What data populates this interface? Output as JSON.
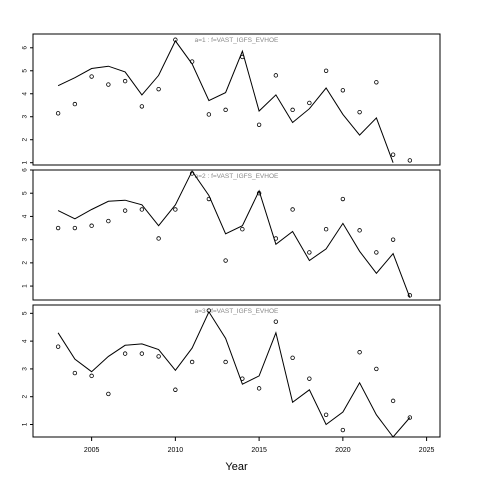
{
  "chart_data": [
    {
      "type": "line",
      "panel_label": "a=1  :  f=VAST_IGFS_EVHOE",
      "x": [
        2003,
        2004,
        2005,
        2006,
        2007,
        2008,
        2009,
        2010,
        2011,
        2012,
        2013,
        2014,
        2015,
        2016,
        2017,
        2018,
        2019,
        2020,
        2021,
        2022,
        2023,
        2024
      ],
      "ylim": [
        0.9,
        6.6
      ],
      "yticks": [
        1,
        2,
        3,
        4,
        5,
        6
      ],
      "series": [
        {
          "kind": "line",
          "values": [
            4.35,
            4.7,
            5.1,
            5.2,
            4.95,
            3.95,
            4.8,
            6.3,
            5.3,
            3.7,
            4.05,
            5.85,
            3.25,
            3.95,
            2.75,
            3.35,
            4.25,
            3.1,
            2.2,
            2.95,
            1.0,
            null
          ]
        },
        {
          "kind": "points",
          "values": [
            3.15,
            3.55,
            4.75,
            4.4,
            4.55,
            3.45,
            4.2,
            6.35,
            5.4,
            3.1,
            3.3,
            5.6,
            2.65,
            4.8,
            3.3,
            3.6,
            5.0,
            4.15,
            3.2,
            4.5,
            1.35,
            1.1
          ]
        }
      ]
    },
    {
      "type": "line",
      "panel_label": "a=2  :  f=VAST_IGFS_EVHOE",
      "x": [
        2003,
        2004,
        2005,
        2006,
        2007,
        2008,
        2009,
        2010,
        2011,
        2012,
        2013,
        2014,
        2015,
        2016,
        2017,
        2018,
        2019,
        2020,
        2021,
        2022,
        2023,
        2024
      ],
      "ylim": [
        0.4,
        6.0
      ],
      "yticks": [
        1,
        2,
        3,
        4,
        5,
        6
      ],
      "series": [
        {
          "kind": "line",
          "values": [
            4.25,
            3.9,
            4.3,
            4.65,
            4.7,
            4.5,
            3.6,
            4.5,
            5.95,
            4.9,
            3.25,
            3.6,
            5.1,
            2.8,
            3.35,
            2.1,
            2.6,
            3.7,
            2.5,
            1.55,
            2.4,
            0.5
          ]
        },
        {
          "kind": "points",
          "values": [
            3.5,
            3.5,
            3.6,
            3.8,
            4.25,
            4.3,
            3.05,
            4.3,
            5.85,
            4.75,
            2.1,
            3.45,
            5.0,
            3.05,
            4.3,
            2.45,
            3.45,
            4.75,
            3.4,
            2.45,
            3.0,
            0.6
          ]
        }
      ]
    },
    {
      "type": "line",
      "panel_label": "a=3  :  f=VAST_IGFS_EVHOE",
      "x": [
        2003,
        2004,
        2005,
        2006,
        2007,
        2008,
        2009,
        2010,
        2011,
        2012,
        2013,
        2014,
        2015,
        2016,
        2017,
        2018,
        2019,
        2020,
        2021,
        2022,
        2023,
        2024
      ],
      "ylim": [
        0.55,
        5.3
      ],
      "yticks": [
        1,
        2,
        3,
        4,
        5
      ],
      "series": [
        {
          "kind": "line",
          "values": [
            4.3,
            3.35,
            2.9,
            3.45,
            3.85,
            3.9,
            3.7,
            2.95,
            3.75,
            5.05,
            4.1,
            2.45,
            2.75,
            4.3,
            1.8,
            2.25,
            1.0,
            1.45,
            2.5,
            1.35,
            0.55,
            1.25
          ]
        },
        {
          "kind": "points",
          "values": [
            3.8,
            2.85,
            2.75,
            2.1,
            3.55,
            3.55,
            3.45,
            2.25,
            3.25,
            5.1,
            3.25,
            2.65,
            2.3,
            4.7,
            3.4,
            2.65,
            1.35,
            0.8,
            3.6,
            3.0,
            1.85,
            1.25
          ]
        }
      ]
    }
  ],
  "x_axis": {
    "label": "Year",
    "ticks": [
      2005,
      2010,
      2015,
      2020,
      2025
    ],
    "xlim": [
      2001.5,
      2025.8
    ]
  }
}
